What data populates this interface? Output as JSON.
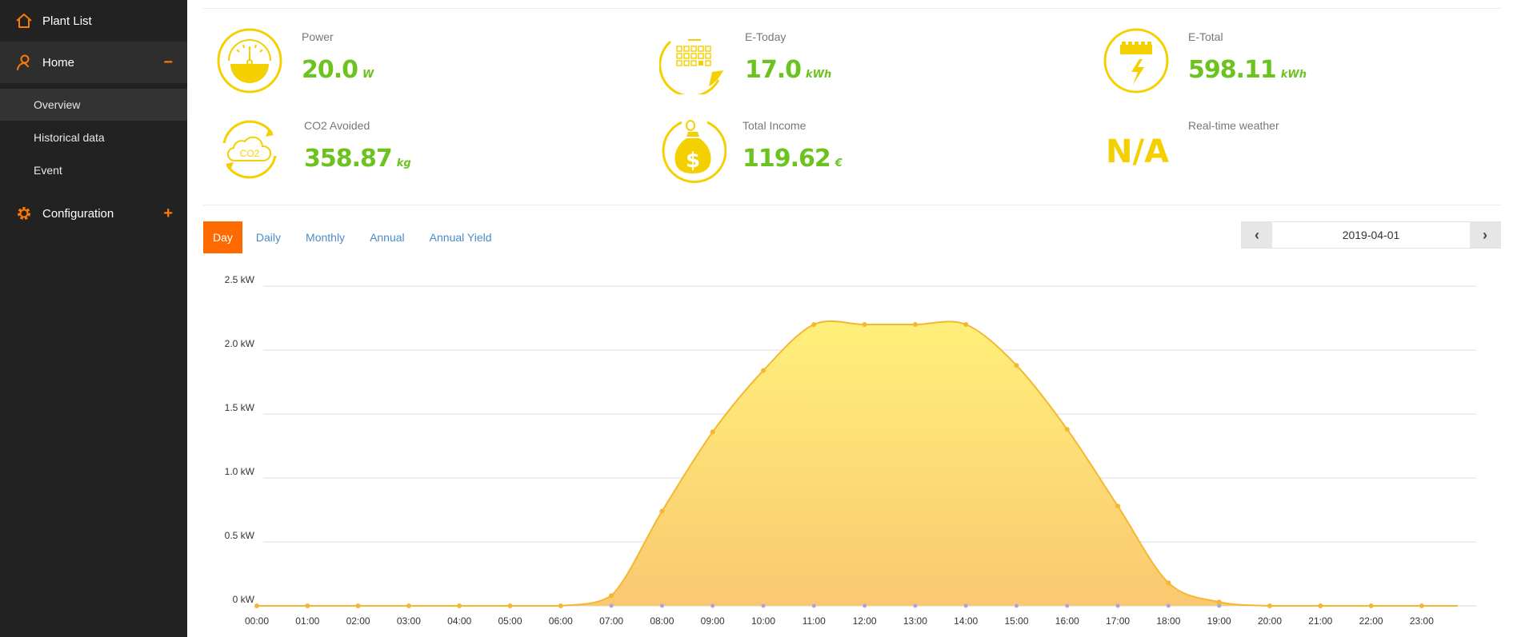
{
  "sidebar": {
    "plant_list": "Plant List",
    "home": "Home",
    "home_toggle": "−",
    "sub_items": [
      "Overview",
      "Historical data",
      "Event"
    ],
    "configuration": "Configuration",
    "configuration_toggle": "+"
  },
  "stats": {
    "power": {
      "label": "Power",
      "value": "20.0",
      "unit": "W"
    },
    "e_today": {
      "label": "E-Today",
      "value": "17.0",
      "unit": "kWh"
    },
    "e_total": {
      "label": "E-Total",
      "value": "598.11",
      "unit": "kWh"
    },
    "co2": {
      "label": "CO2 Avoided",
      "value": "358.87",
      "unit": "kg",
      "icon_text": "CO2"
    },
    "income": {
      "label": "Total Income",
      "value": "119.62",
      "unit": "€"
    },
    "weather": {
      "label": "Real-time weather",
      "value": "N/A"
    }
  },
  "tabs": [
    "Day",
    "Daily",
    "Monthly",
    "Annual",
    "Annual Yield"
  ],
  "active_tab": "Day",
  "date": "2019-04-01",
  "colors": {
    "accent": "#ff6a00",
    "value_green": "#6cc31f",
    "icon_yellow": "#f5d000",
    "series_line": "#f5b730",
    "tab_link": "#4a8cc7"
  },
  "chart_data": {
    "type": "area",
    "x": [
      "00:00",
      "01:00",
      "02:00",
      "03:00",
      "04:00",
      "05:00",
      "06:00",
      "07:00",
      "08:00",
      "09:00",
      "10:00",
      "11:00",
      "12:00",
      "13:00",
      "14:00",
      "15:00",
      "16:00",
      "17:00",
      "18:00",
      "19:00",
      "20:00",
      "21:00",
      "22:00",
      "23:00"
    ],
    "series": [
      {
        "values": [
          0,
          0,
          0,
          0,
          0,
          0,
          0,
          0.08,
          0.74,
          1.36,
          1.84,
          2.2,
          2.2,
          2.2,
          2.2,
          1.88,
          1.38,
          0.78,
          0.18,
          0.03,
          0,
          0,
          0,
          0
        ]
      }
    ],
    "ytick_labels": [
      "0 kW",
      "0.5 kW",
      "1.0 kW",
      "1.5 kW",
      "2.0 kW",
      "2.5 kW"
    ],
    "ylim": [
      0,
      2.5
    ],
    "grid": true
  }
}
